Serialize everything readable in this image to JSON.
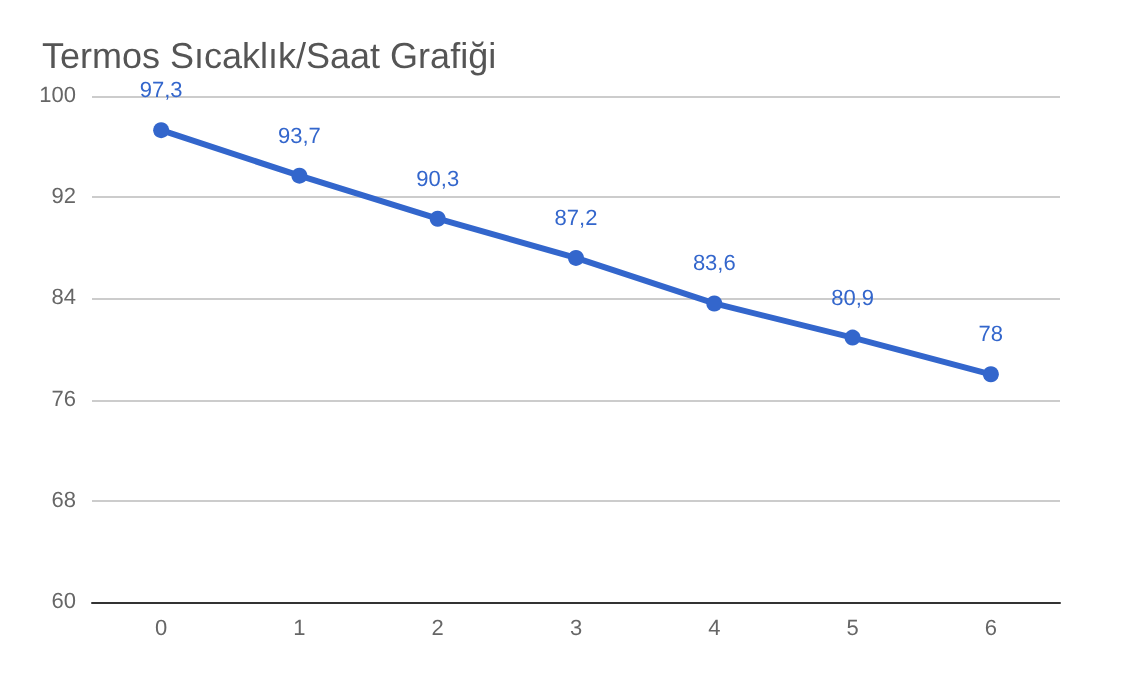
{
  "chart_data": {
    "type": "line",
    "title": "Termos Sıcaklık/Saat Grafiği",
    "categories": [
      "0",
      "1",
      "2",
      "3",
      "4",
      "5",
      "6"
    ],
    "series": [
      {
        "color": "#3366cc",
        "values": [
          97.3,
          93.7,
          90.3,
          87.2,
          83.6,
          80.9,
          78
        ],
        "value_labels": [
          "97,3",
          "93,7",
          "90,3",
          "87,2",
          "83,6",
          "80,9",
          "78"
        ]
      }
    ],
    "ylim": [
      60,
      100
    ],
    "yticks": [
      60,
      68,
      76,
      84,
      92,
      100
    ],
    "grid": "y",
    "marker": "circle",
    "line_style": "solid"
  }
}
